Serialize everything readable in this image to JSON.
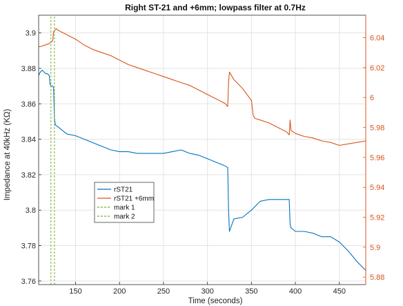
{
  "chart_data": {
    "type": "line",
    "title": "Right ST-21 and +6mm; lowpass filter at 0.7Hz",
    "xlabel": "Time (seconds)",
    "ylabel_left": "Impedance at 40kHz (KΩ)",
    "xlim": [
      108,
      480
    ],
    "ylim_left": [
      3.758,
      3.91
    ],
    "ylim_right": [
      5.875,
      6.055
    ],
    "x_ticks": [
      150,
      200,
      250,
      300,
      350,
      400,
      450
    ],
    "y_ticks_left": [
      3.76,
      3.78,
      3.8,
      3.82,
      3.84,
      3.86,
      3.88,
      3.9
    ],
    "y_ticks_right": [
      5.88,
      5.9,
      5.92,
      5.94,
      5.96,
      5.98,
      6.0,
      6.02,
      6.04
    ],
    "grid": true,
    "legend_position": "lower-left",
    "colors": {
      "left_series": "#0072BD",
      "right_series": "#D95319",
      "mark1": "#77AC30",
      "mark2": "#77AC30"
    },
    "series": [
      {
        "name": "rST21",
        "axis": "left",
        "color": "#0072BD",
        "x": [
          108,
          110,
          112,
          114,
          116,
          118,
          120,
          121,
          122,
          124,
          125,
          126,
          127,
          130,
          140,
          150,
          160,
          170,
          180,
          190,
          200,
          210,
          220,
          230,
          240,
          250,
          260,
          270,
          280,
          290,
          300,
          310,
          320,
          323,
          324,
          325,
          330,
          340,
          350,
          360,
          370,
          380,
          390,
          393,
          394,
          395,
          400,
          410,
          420,
          430,
          440,
          450,
          460,
          470,
          480
        ],
        "y": [
          3.876,
          3.878,
          3.879,
          3.878,
          3.877,
          3.877,
          3.876,
          3.871,
          3.87,
          3.87,
          3.869,
          3.852,
          3.848,
          3.847,
          3.843,
          3.842,
          3.84,
          3.838,
          3.836,
          3.834,
          3.833,
          3.833,
          3.832,
          3.832,
          3.832,
          3.832,
          3.833,
          3.834,
          3.832,
          3.831,
          3.829,
          3.827,
          3.825,
          3.824,
          3.8,
          3.788,
          3.795,
          3.796,
          3.8,
          3.805,
          3.806,
          3.806,
          3.806,
          3.806,
          3.792,
          3.79,
          3.788,
          3.788,
          3.787,
          3.785,
          3.785,
          3.782,
          3.777,
          3.771,
          3.766
        ]
      },
      {
        "name": "rST21 +6mm",
        "axis": "right",
        "color": "#D95319",
        "x": [
          108,
          110,
          115,
          120,
          124,
          125,
          128,
          130,
          140,
          150,
          160,
          170,
          180,
          190,
          200,
          210,
          220,
          230,
          240,
          250,
          260,
          270,
          280,
          290,
          300,
          310,
          320,
          323,
          324,
          325,
          330,
          340,
          350,
          352,
          354,
          360,
          370,
          380,
          390,
          393,
          394,
          395,
          400,
          410,
          420,
          430,
          440,
          450,
          460,
          470,
          480
        ],
        "y": [
          6.034,
          6.034,
          6.035,
          6.036,
          6.038,
          6.044,
          6.046,
          6.045,
          6.042,
          6.039,
          6.035,
          6.032,
          6.03,
          6.028,
          6.025,
          6.022,
          6.02,
          6.018,
          6.016,
          6.014,
          6.012,
          6.01,
          6.008,
          6.005,
          6.002,
          5.999,
          5.996,
          5.994,
          6.01,
          6.017,
          6.012,
          6.006,
          5.998,
          5.988,
          5.986,
          5.985,
          5.983,
          5.98,
          5.977,
          5.975,
          5.985,
          5.978,
          5.976,
          5.974,
          5.973,
          5.971,
          5.97,
          5.968,
          5.969,
          5.97,
          5.971
        ]
      },
      {
        "name": "mark 1",
        "axis": "left",
        "color": "#77AC30",
        "style": "dashed",
        "x": [
          122,
          122
        ],
        "y": [
          3.758,
          3.91
        ]
      },
      {
        "name": "mark 2",
        "axis": "left",
        "color": "#77AC30",
        "style": "dashed",
        "x": [
          126,
          126
        ],
        "y": [
          3.758,
          3.91
        ]
      }
    ]
  }
}
